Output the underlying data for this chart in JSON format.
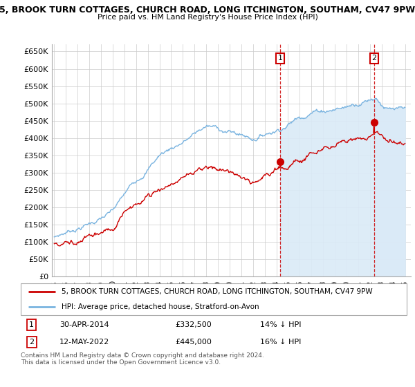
{
  "title": "5, BROOK TURN COTTAGES, CHURCH ROAD, LONG ITCHINGTON, SOUTHAM, CV47 9PW",
  "subtitle": "Price paid vs. HM Land Registry's House Price Index (HPI)",
  "ylabel_vals": [
    "£0",
    "£50K",
    "£100K",
    "£150K",
    "£200K",
    "£250K",
    "£300K",
    "£350K",
    "£400K",
    "£450K",
    "£500K",
    "£550K",
    "£600K",
    "£650K"
  ],
  "yticks": [
    0,
    50000,
    100000,
    150000,
    200000,
    250000,
    300000,
    350000,
    400000,
    450000,
    500000,
    550000,
    600000,
    650000
  ],
  "ylim": [
    0,
    670000
  ],
  "xlim_start": 1994.8,
  "xlim_end": 2025.5,
  "hpi_color": "#7ab4e0",
  "hpi_fill_color": "#daeaf7",
  "price_color": "#cc0000",
  "point1_x": 2014.33,
  "point1_y": 332500,
  "point2_x": 2022.37,
  "point2_y": 445000,
  "legend_label1": "5, BROOK TURN COTTAGES, CHURCH ROAD, LONG ITCHINGTON, SOUTHAM, CV47 9PW",
  "legend_label2": "HPI: Average price, detached house, Stratford-on-Avon",
  "footnote": "Contains HM Land Registry data © Crown copyright and database right 2024.\nThis data is licensed under the Open Government Licence v3.0.",
  "background_color": "#ffffff",
  "grid_color": "#cccccc"
}
